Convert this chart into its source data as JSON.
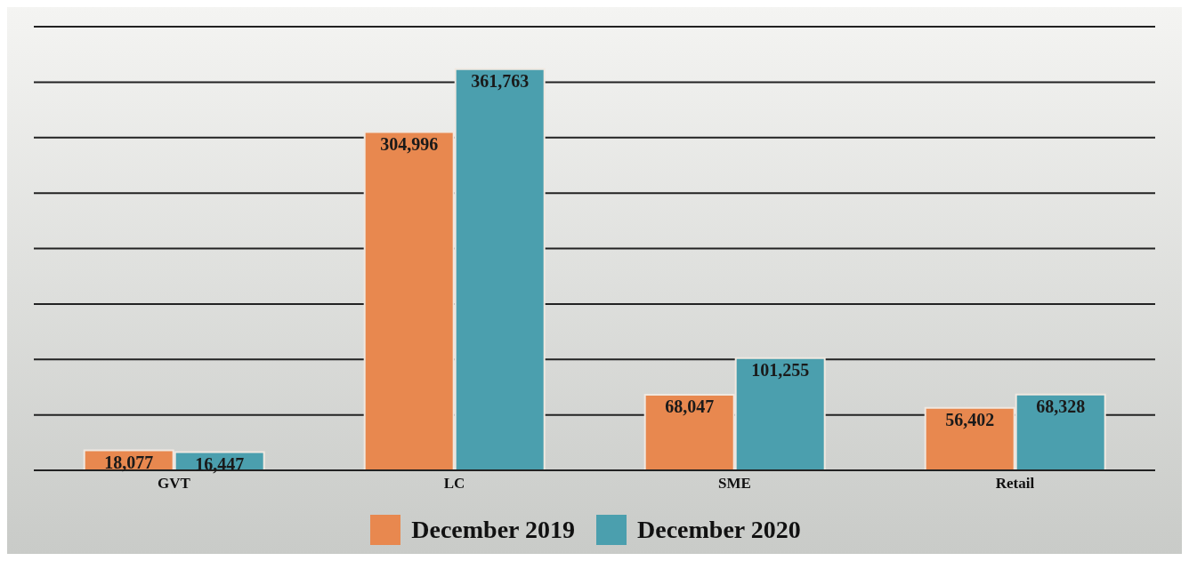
{
  "chart_data": {
    "type": "bar",
    "categories": [
      "GVT",
      "LC",
      "SME",
      "Retail"
    ],
    "series": [
      {
        "name": "December 2019",
        "color": "#e8884f",
        "values": [
          18077,
          304996,
          68047,
          56402
        ],
        "value_labels": [
          "18,077",
          "304,996",
          "68,047",
          "56,402"
        ]
      },
      {
        "name": "December 2020",
        "color": "#4b9fae",
        "values": [
          16447,
          361763,
          101255,
          68328
        ],
        "value_labels": [
          "16,447",
          "361,763",
          "101,255",
          "68,328"
        ]
      }
    ],
    "tick_labels": "x",
    "grid": "y",
    "legend": "bottom"
  }
}
